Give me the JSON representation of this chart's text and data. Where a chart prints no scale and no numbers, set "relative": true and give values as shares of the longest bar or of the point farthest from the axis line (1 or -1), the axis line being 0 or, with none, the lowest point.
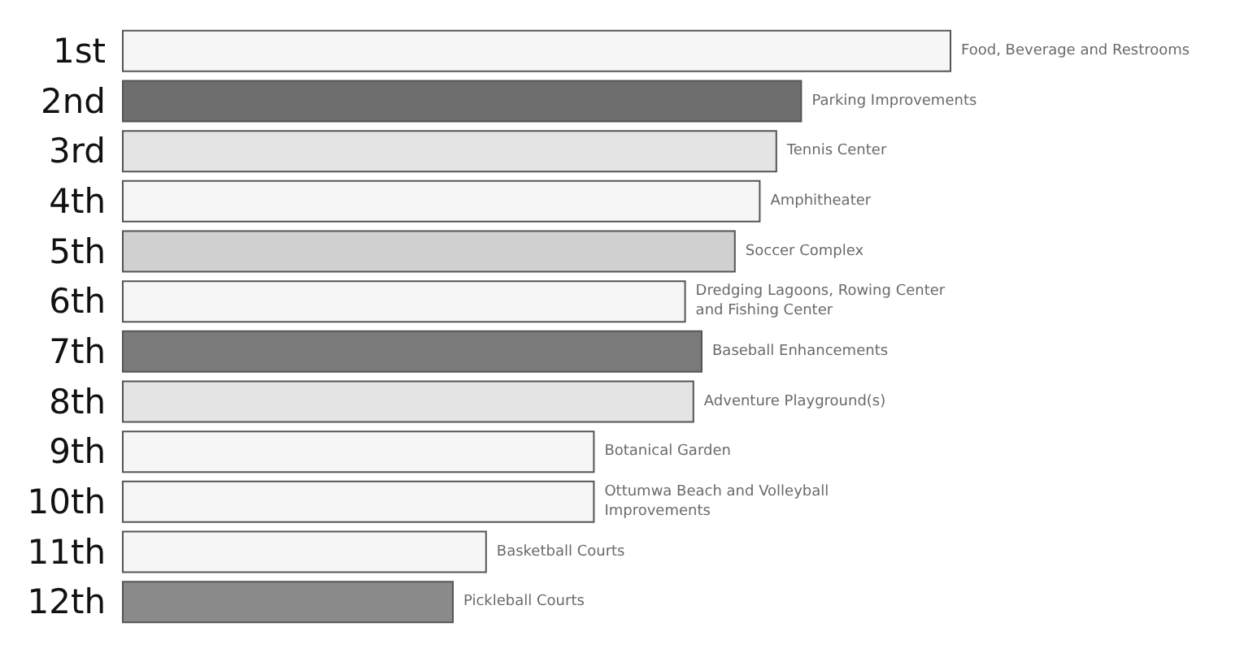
{
  "chart_data": {
    "type": "bar",
    "orientation": "horizontal",
    "relative": true,
    "categories": [
      "1st",
      "2nd",
      "3rd",
      "4th",
      "5th",
      "6th",
      "7th",
      "8th",
      "9th",
      "10th",
      "11th",
      "12th"
    ],
    "values": [
      1,
      0.82,
      0.79,
      0.77,
      0.74,
      0.68,
      0.7,
      0.69,
      0.57,
      0.57,
      0.44,
      0.4
    ],
    "colors": [
      "#f6f6f6",
      "#6e6e6e",
      "#e4e4e4",
      "#f6f6f6",
      "#d0d0d0",
      "#f6f6f6",
      "#7a7a7a",
      "#e4e4e4",
      "#f6f6f6",
      "#f6f6f6",
      "#f6f6f6",
      "#8a8a8a"
    ],
    "annotations": [
      {
        "text": "Food, Beverage and Restrooms",
        "x": 1,
        "y": "1st"
      },
      {
        "text": "Parking Improvements",
        "x": 0.82,
        "y": "2nd"
      },
      {
        "text": "Tennis Center",
        "x": 0.79,
        "y": "3rd"
      },
      {
        "text": "Amphitheater",
        "x": 0.77,
        "y": "4th"
      },
      {
        "text": "Soccer Complex",
        "x": 0.74,
        "y": "5th"
      },
      {
        "text": "Dredging Lagoons, Rowing Center and Fishing Center",
        "x": 0.68,
        "y": "6th"
      },
      {
        "text": "Baseball Enhancements",
        "x": 0.7,
        "y": "7th"
      },
      {
        "text": "Adventure Playground(s)",
        "x": 0.69,
        "y": "8th"
      },
      {
        "text": "Botanical Garden",
        "x": 0.57,
        "y": "9th"
      },
      {
        "text": "Ottumwa Beach and Volleyball Improvements",
        "x": 0.57,
        "y": "10th"
      },
      {
        "text": "Basketball Courts",
        "x": 0.44,
        "y": "11th"
      },
      {
        "text": "Pickleball Courts",
        "x": 0.4,
        "y": "12th"
      }
    ]
  }
}
